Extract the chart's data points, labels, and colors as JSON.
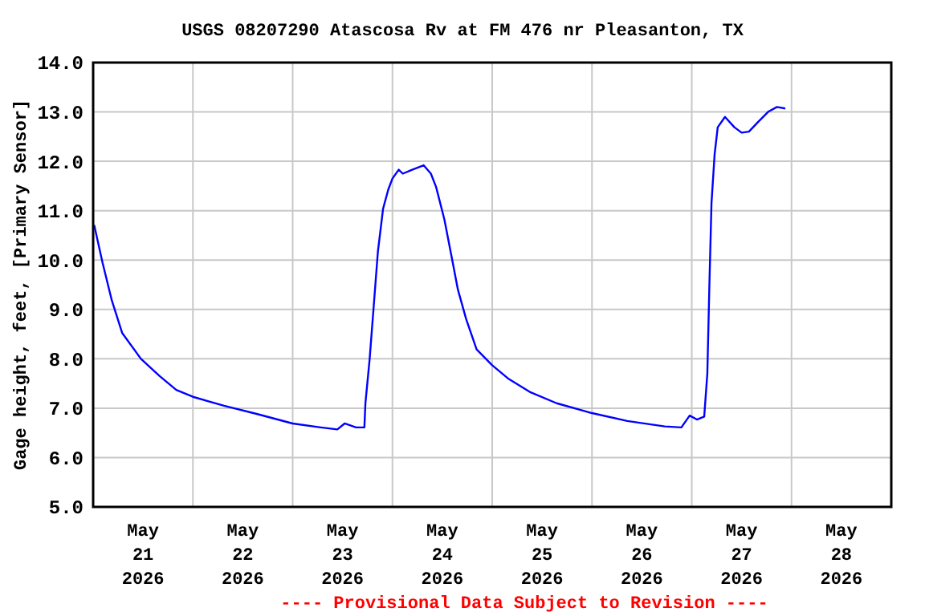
{
  "chart_data": {
    "type": "line",
    "title": "USGS 08207290 Atascosa Rv at FM 476 nr Pleasanton, TX",
    "ylabel": "Gage height, feet, [Primary Sensor]",
    "annotations": [
      "---- Provisional Data Subject to Revision ----"
    ],
    "x": [
      "2026-05-21T00:15",
      "2026-05-21T02:15",
      "2026-05-21T04:30",
      "2026-05-21T07:00",
      "2026-05-21T11:30",
      "2026-05-21T16:00",
      "2026-05-21T20:00",
      "2026-05-22T00:00",
      "2026-05-22T07:30",
      "2026-05-22T15:30",
      "2026-05-23T00:00",
      "2026-05-23T06:45",
      "2026-05-23T10:45",
      "2026-05-23T12:30",
      "2026-05-23T15:15",
      "2026-05-23T17:15",
      "2026-05-23T17:30",
      "2026-05-23T18:30",
      "2026-05-23T19:30",
      "2026-05-23T20:30",
      "2026-05-23T21:45",
      "2026-05-23T23:00",
      "2026-05-24T00:00",
      "2026-05-24T01:30",
      "2026-05-24T02:30",
      "2026-05-24T04:45",
      "2026-05-24T07:30",
      "2026-05-24T09:15",
      "2026-05-24T10:30",
      "2026-05-24T12:30",
      "2026-05-24T14:30",
      "2026-05-24T15:45",
      "2026-05-24T17:45",
      "2026-05-24T20:15",
      "2026-05-25T00:00",
      "2026-05-25T04:00",
      "2026-05-25T09:15",
      "2026-05-25T15:30",
      "2026-05-26T00:00",
      "2026-05-26T08:30",
      "2026-05-26T17:30",
      "2026-05-26T21:30",
      "2026-05-26T23:30",
      "2026-05-27T01:15",
      "2026-05-27T03:00",
      "2026-05-27T03:45",
      "2026-05-27T04:15",
      "2026-05-27T04:45",
      "2026-05-27T05:30",
      "2026-05-27T06:15",
      "2026-05-27T08:00",
      "2026-05-27T10:15",
      "2026-05-27T12:00",
      "2026-05-27T13:45",
      "2026-05-27T16:00",
      "2026-05-27T18:30",
      "2026-05-27T20:30",
      "2026-05-27T22:30"
    ],
    "series": [
      {
        "color": "#0000ff",
        "values": [
          10.71,
          9.95,
          9.18,
          8.52,
          8.0,
          7.65,
          7.37,
          7.23,
          7.05,
          6.88,
          6.69,
          6.61,
          6.57,
          6.69,
          6.61,
          6.61,
          7.1,
          7.98,
          9.07,
          10.17,
          11.04,
          11.43,
          11.65,
          11.83,
          11.75,
          11.83,
          11.92,
          11.75,
          11.48,
          10.82,
          9.95,
          9.4,
          8.8,
          8.19,
          7.87,
          7.59,
          7.32,
          7.1,
          6.9,
          6.74,
          6.63,
          6.61,
          6.85,
          6.77,
          6.83,
          7.7,
          9.51,
          11.15,
          12.14,
          12.69,
          12.9,
          12.69,
          12.58,
          12.6,
          12.8,
          13.01,
          13.1,
          13.07
        ]
      }
    ],
    "xlim": [
      "2026-05-21T00:00",
      "2026-05-29T00:00"
    ],
    "xticks": [
      {
        "value": "2026-05-21T12:00",
        "label": "May\n21\n2026"
      },
      {
        "value": "2026-05-22T00:00",
        "label": null
      },
      {
        "value": "2026-05-22T12:00",
        "label": "May\n22\n2026"
      },
      {
        "value": "2026-05-23T00:00",
        "label": null
      },
      {
        "value": "2026-05-23T12:00",
        "label": "May\n23\n2026"
      },
      {
        "value": "2026-05-24T00:00",
        "label": null
      },
      {
        "value": "2026-05-24T12:00",
        "label": "May\n24\n2026"
      },
      {
        "value": "2026-05-25T00:00",
        "label": null
      },
      {
        "value": "2026-05-25T12:00",
        "label": "May\n25\n2026"
      },
      {
        "value": "2026-05-26T00:00",
        "label": null
      },
      {
        "value": "2026-05-26T12:00",
        "label": "May\n26\n2026"
      },
      {
        "value": "2026-05-27T00:00",
        "label": null
      },
      {
        "value": "2026-05-27T12:00",
        "label": "May\n27\n2026"
      },
      {
        "value": "2026-05-28T00:00",
        "label": null
      },
      {
        "value": "2026-05-28T12:00",
        "label": "May\n28\n2026"
      }
    ],
    "ylim": [
      5,
      14
    ],
    "yticks": [
      {
        "value": 5,
        "label": "5.0"
      },
      {
        "value": 6,
        "label": "6.0"
      },
      {
        "value": 7,
        "label": "7.0"
      },
      {
        "value": 8,
        "label": "8.0"
      },
      {
        "value": 9,
        "label": "9.0"
      },
      {
        "value": 10,
        "label": "10.0"
      },
      {
        "value": 11,
        "label": "11.0"
      },
      {
        "value": 12,
        "label": "12.0"
      },
      {
        "value": 13,
        "label": "13.0"
      },
      {
        "value": 14,
        "label": "14.0"
      }
    ],
    "grid": true,
    "marker": "none",
    "line_style": "solid"
  }
}
